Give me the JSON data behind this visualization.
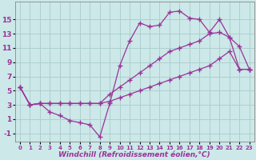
{
  "background_color": "#cce8e8",
  "grid_color": "#aacccc",
  "line_color": "#993399",
  "marker": "+",
  "markersize": 4,
  "linewidth": 0.9,
  "markeredgewidth": 1.0,
  "xlabel": "Windchill (Refroidissement éolien,°C)",
  "xlabel_fontsize": 6.5,
  "ytick_fontsize": 6.5,
  "xtick_fontsize": 5.0,
  "yticks": [
    -1,
    1,
    3,
    5,
    7,
    9,
    11,
    13,
    15
  ],
  "xticks": [
    0,
    1,
    2,
    3,
    4,
    5,
    6,
    7,
    8,
    9,
    10,
    11,
    12,
    13,
    14,
    15,
    16,
    17,
    18,
    19,
    20,
    21,
    22,
    23
  ],
  "xlim": [
    -0.5,
    23.5
  ],
  "ylim": [
    -2.2,
    17.5
  ],
  "curves": [
    {
      "x": [
        0,
        1,
        2,
        3,
        4,
        5,
        6,
        7,
        8,
        9,
        10,
        11,
        12,
        13,
        14,
        15,
        16,
        17,
        18,
        19,
        20,
        21,
        22,
        23
      ],
      "y": [
        5.5,
        3.0,
        3.2,
        2.0,
        1.5,
        0.8,
        0.5,
        0.2,
        -1.5,
        3.2,
        8.5,
        12.0,
        14.5,
        14.0,
        14.2,
        16.0,
        16.2,
        15.2,
        15.0,
        13.2,
        15.0,
        12.5,
        11.2,
        8.0
      ]
    },
    {
      "x": [
        0,
        1,
        2,
        3,
        4,
        5,
        6,
        7,
        8,
        9,
        10,
        11,
        12,
        13,
        14,
        15,
        16,
        17,
        18,
        19,
        20,
        21,
        22,
        23
      ],
      "y": [
        5.5,
        3.0,
        3.2,
        3.2,
        3.2,
        3.2,
        3.2,
        3.2,
        3.2,
        4.5,
        5.5,
        6.5,
        7.5,
        8.5,
        9.5,
        10.5,
        11.0,
        11.5,
        12.0,
        13.0,
        13.2,
        12.5,
        8.0,
        8.0
      ]
    },
    {
      "x": [
        0,
        1,
        2,
        3,
        4,
        5,
        6,
        7,
        8,
        9,
        10,
        11,
        12,
        13,
        14,
        15,
        16,
        17,
        18,
        19,
        20,
        21,
        22,
        23
      ],
      "y": [
        5.5,
        3.0,
        3.2,
        3.2,
        3.2,
        3.2,
        3.2,
        3.2,
        3.2,
        3.5,
        4.0,
        4.5,
        5.0,
        5.5,
        6.0,
        6.5,
        7.0,
        7.5,
        8.0,
        8.5,
        9.5,
        10.5,
        8.0,
        8.0
      ]
    }
  ]
}
